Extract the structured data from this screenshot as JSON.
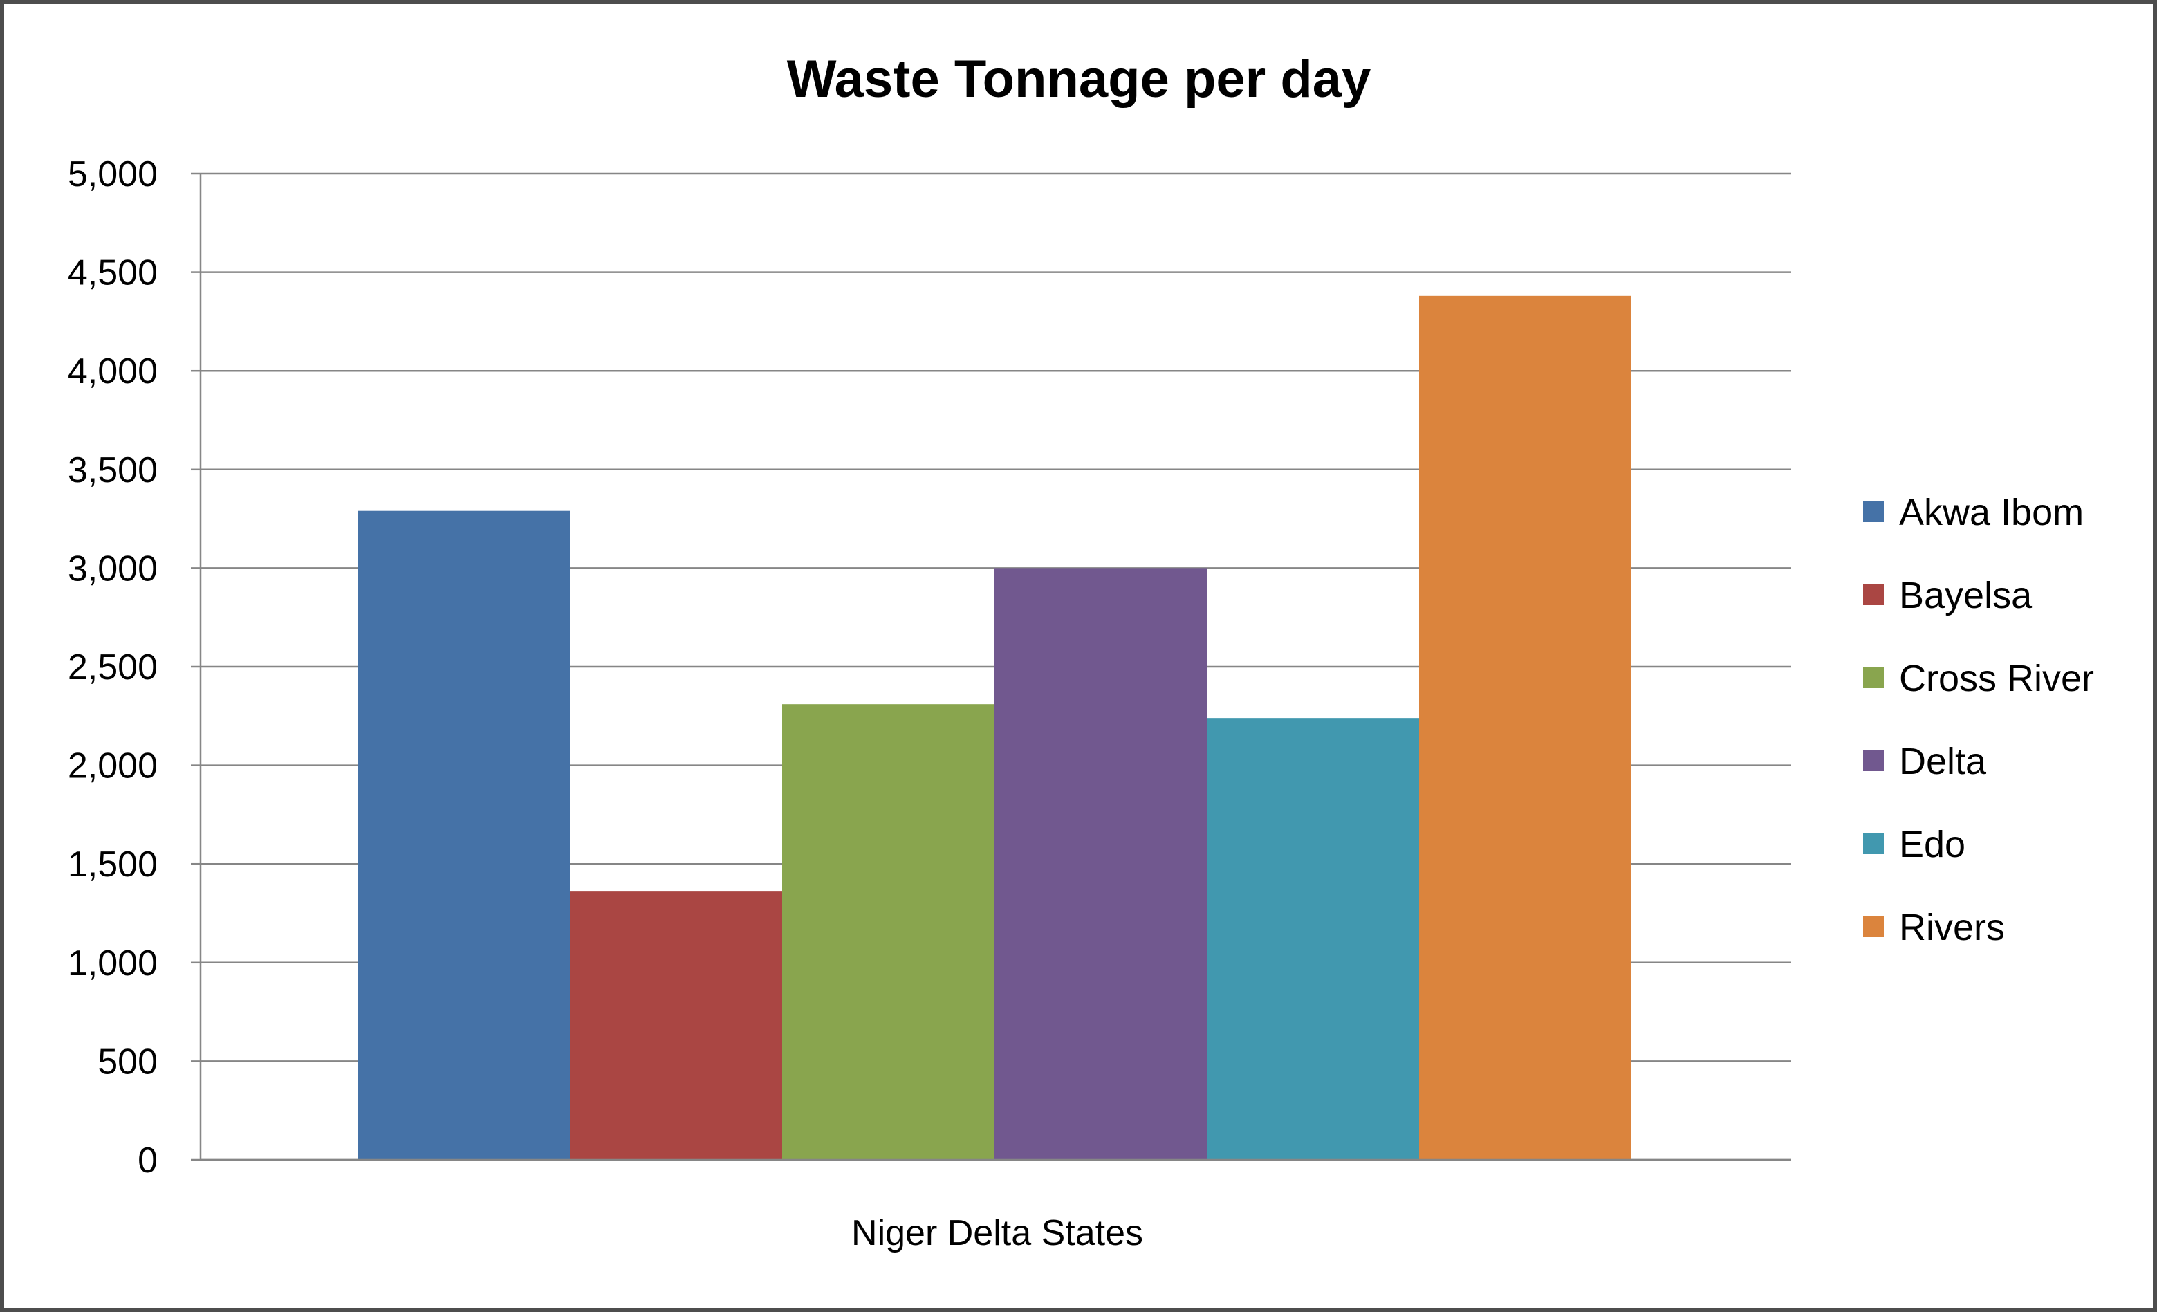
{
  "chart_data": {
    "type": "bar",
    "title": "Waste Tonnage per day",
    "xlabel": "Niger Delta States",
    "ylabel": "",
    "categories": [
      "Niger Delta States"
    ],
    "series": [
      {
        "name": "Akwa Ibom",
        "color": "#4572A7",
        "values": [
          3290
        ]
      },
      {
        "name": "Bayelsa",
        "color": "#AA4643",
        "values": [
          1360
        ]
      },
      {
        "name": "Cross River",
        "color": "#89A54E",
        "values": [
          2310
        ]
      },
      {
        "name": "Delta",
        "color": "#71588F",
        "values": [
          3000
        ]
      },
      {
        "name": "Edo",
        "color": "#4198AF",
        "values": [
          2240
        ]
      },
      {
        "name": "Rivers",
        "color": "#DB843D",
        "values": [
          4380
        ]
      }
    ],
    "ylim": [
      0,
      5000
    ],
    "yticks": [
      "0",
      "500",
      "1,000",
      "1,500",
      "2,000",
      "2,500",
      "3,000",
      "3,500",
      "4,000",
      "4,500",
      "5,000"
    ],
    "ytick_values": [
      0,
      500,
      1000,
      1500,
      2000,
      2500,
      3000,
      3500,
      4000,
      4500,
      5000
    ],
    "grid": true,
    "legend_position": "right"
  },
  "colors": {
    "frame_border": "#4d4d4d",
    "grid": "#868686",
    "axis": "#868686",
    "background": "#ffffff"
  }
}
